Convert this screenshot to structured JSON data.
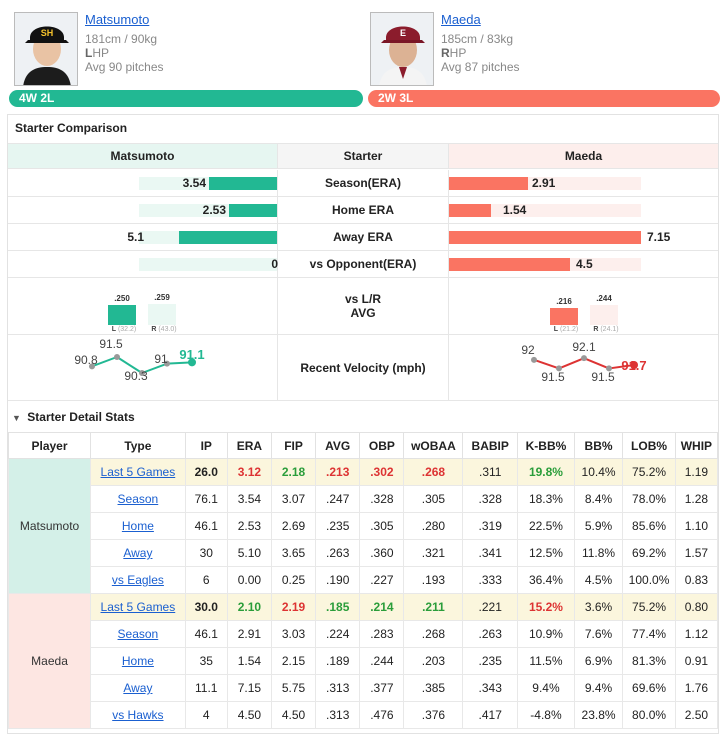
{
  "away": {
    "name": "Matsumoto",
    "height_weight": "181cm / 90kg",
    "hand_letter": "L",
    "hand_rest": "HP",
    "avg_pitches": "Avg 90 pitches",
    "record": "4W 2L",
    "color": "#22b893"
  },
  "home": {
    "name": "Maeda",
    "height_weight": "185cm / 83kg",
    "hand_letter": "R",
    "hand_rest": "HP",
    "avg_pitches": "Avg 87 pitches",
    "record": "2W 3L",
    "color": "#fa7462"
  },
  "comparison": {
    "title": "Starter Comparison",
    "col_left": "Matsumoto",
    "col_mid": "Starter",
    "col_right": "Maeda",
    "rows": [
      {
        "label": "Season(ERA)",
        "left": "3.54",
        "right": "2.91",
        "left_frac": 0.49,
        "right_frac": 0.41
      },
      {
        "label": "Home ERA",
        "left": "2.53",
        "right": "1.54",
        "left_frac": 0.35,
        "right_frac": 0.22
      },
      {
        "label": "Away ERA",
        "left": "5.1",
        "right": "7.15",
        "left_frac": 0.71,
        "right_frac": 1.0
      },
      {
        "label": "vs Opponent(ERA)",
        "left": "0",
        "right": "4.5",
        "left_frac": 0.0,
        "right_frac": 0.63
      }
    ],
    "lr_label_1": "vs L/R",
    "lr_label_2": "AVG",
    "left_lr": {
      "l_val": ".250",
      "r_val": ".259",
      "l_sub": "L",
      "l_ip": "(32.2)",
      "r_sub": "R",
      "r_ip": "(43.0)",
      "l_frac": 0.5,
      "r_frac": 0.52
    },
    "right_lr": {
      "l_val": ".216",
      "r_val": ".244",
      "l_sub": "L",
      "l_ip": "(21.2)",
      "r_sub": "R",
      "r_ip": "(24.1)",
      "l_frac": 0.43,
      "r_frac": 0.49
    },
    "velocity_label": "Recent Velocity (mph)",
    "left_velocity": [
      "90.8",
      "91.5",
      "90.3",
      "91",
      "91.1"
    ],
    "right_velocity": [
      "92",
      "91.5",
      "92.1",
      "91.5",
      "91.7"
    ]
  },
  "detail": {
    "title": "Starter Detail Stats",
    "headers": [
      "Player",
      "Type",
      "IP",
      "ERA",
      "FIP",
      "AVG",
      "OBP",
      "wOBAA",
      "BABIP",
      "K-BB%",
      "BB%",
      "LOB%",
      "WHIP"
    ],
    "rows": [
      [
        "Last 5 Games",
        "26.0",
        "3.12",
        "2.18",
        ".213",
        ".302",
        ".268",
        ".311",
        "19.8%",
        "10.4%",
        "75.2%",
        "1.19"
      ],
      [
        "Season",
        "76.1",
        "3.54",
        "3.07",
        ".247",
        ".328",
        ".305",
        ".328",
        "18.3%",
        "8.4%",
        "78.0%",
        "1.28"
      ],
      [
        "Home",
        "46.1",
        "2.53",
        "2.69",
        ".235",
        ".305",
        ".280",
        ".319",
        "22.5%",
        "5.9%",
        "85.6%",
        "1.10"
      ],
      [
        "Away",
        "30",
        "5.10",
        "3.65",
        ".263",
        ".360",
        ".321",
        ".341",
        "12.5%",
        "11.8%",
        "69.2%",
        "1.57"
      ],
      [
        "vs Eagles",
        "6",
        "0.00",
        "0.25",
        ".190",
        ".227",
        ".193",
        ".333",
        "36.4%",
        "4.5%",
        "100.0%",
        "0.83"
      ],
      [
        "Last 5 Games",
        "30.0",
        "2.10",
        "2.19",
        ".185",
        ".214",
        ".211",
        ".221",
        "15.2%",
        "3.6%",
        "75.2%",
        "0.80"
      ],
      [
        "Season",
        "46.1",
        "2.91",
        "3.03",
        ".224",
        ".283",
        ".268",
        ".263",
        "10.9%",
        "7.6%",
        "77.4%",
        "1.12"
      ],
      [
        "Home",
        "35",
        "1.54",
        "2.15",
        ".189",
        ".244",
        ".203",
        ".235",
        "11.5%",
        "6.9%",
        "81.3%",
        "0.91"
      ],
      [
        "Away",
        "11.1",
        "7.15",
        "5.75",
        ".313",
        ".377",
        ".385",
        ".343",
        "9.4%",
        "9.4%",
        "69.6%",
        "1.76"
      ],
      [
        "vs Hawks",
        "4",
        "4.50",
        "4.50",
        ".313",
        ".476",
        ".376",
        ".417",
        "-4.8%",
        "23.8%",
        "80.0%",
        "2.50"
      ]
    ]
  }
}
